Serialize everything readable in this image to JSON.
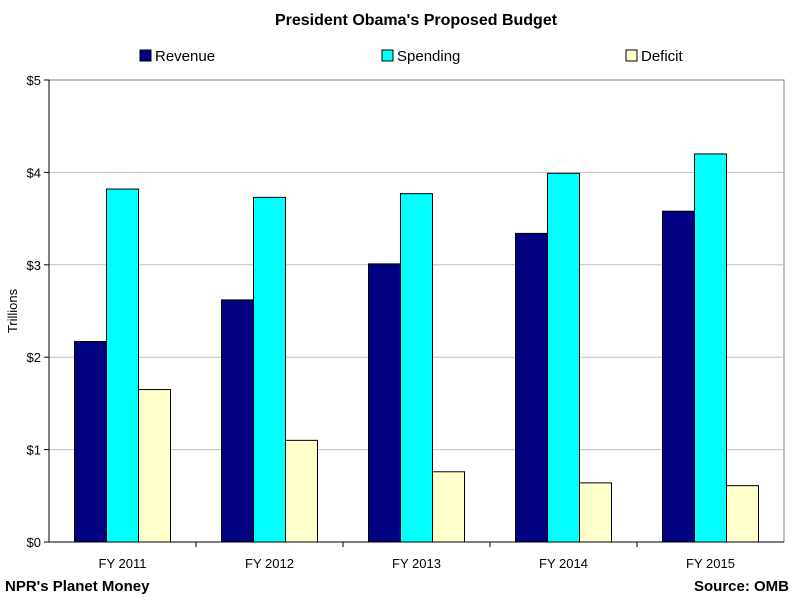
{
  "chart_data": {
    "type": "bar",
    "title": "President Obama's Proposed Budget",
    "xlabel": "",
    "ylabel": "Trillions",
    "categories": [
      "FY 2011",
      "FY 2012",
      "FY 2013",
      "FY 2014",
      "FY 2015"
    ],
    "series": [
      {
        "name": "Revenue",
        "color": "#000080",
        "values": [
          2.17,
          2.62,
          3.01,
          3.34,
          3.58
        ]
      },
      {
        "name": "Spending",
        "color": "#00ffff",
        "values": [
          3.82,
          3.73,
          3.77,
          3.99,
          4.2
        ]
      },
      {
        "name": "Deficit",
        "color": "#ffffcc",
        "values": [
          1.65,
          1.1,
          0.76,
          0.64,
          0.61
        ]
      }
    ],
    "ylim": [
      0,
      5
    ],
    "yticks": [
      0,
      1,
      2,
      3,
      4,
      5
    ],
    "ytick_labels": [
      "$0",
      "$1",
      "$2",
      "$3",
      "$4",
      "$5"
    ],
    "grid": true,
    "legend_position": "top"
  },
  "footer": {
    "left": "NPR's Planet Money",
    "right": "Source: OMB"
  }
}
